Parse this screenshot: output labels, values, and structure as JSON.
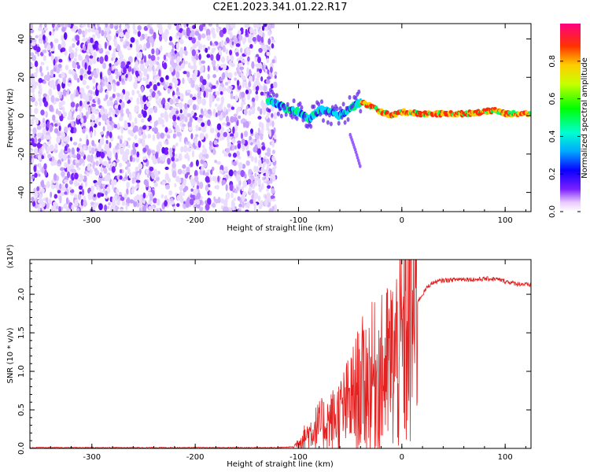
{
  "title": "C2E1.2023.341.01.22.R17",
  "colors": {
    "snr_line": "#e32020",
    "noise": "#7a1fff",
    "axis": "#000000"
  },
  "chart_data": [
    {
      "type": "heatmap",
      "xlabel": "Height of straight line (km)",
      "ylabel": "Frequency (Hz)",
      "xlim": [
        -360,
        125
      ],
      "ylim": [
        -50,
        48
      ],
      "xticks": [
        "-300",
        "-200",
        "-100",
        "0",
        "100"
      ],
      "yticks": [
        "40",
        "20",
        "0",
        "-20",
        "-40"
      ],
      "colorbar": {
        "label": "Normalized spectral amplitude",
        "range": [
          0.0,
          1.0
        ],
        "ticks": [
          "0.0",
          "0.2",
          "0.4",
          "0.6",
          "0.8"
        ]
      },
      "noise_region_x": [
        -360,
        -122
      ],
      "signal_trace": {
        "x": [
          -130,
          -120,
          -110,
          -100,
          -90,
          -80,
          -70,
          -60,
          -50,
          -40,
          -30,
          -20,
          -10,
          0,
          20,
          60,
          80,
          90,
          100,
          125
        ],
        "y": [
          8,
          6,
          3,
          2,
          -2,
          3,
          2,
          0,
          4,
          7,
          5,
          2,
          0,
          2,
          1,
          1,
          2,
          3,
          1,
          1
        ]
      },
      "branch_trace": {
        "x": [
          -50,
          -45,
          -40
        ],
        "y": [
          -10,
          -18,
          -27
        ]
      }
    },
    {
      "type": "line",
      "xlabel": "Height of straight line (km)",
      "ylabel": "SNR (10 * v/v)",
      "y_multiplier": "(x10⁴)",
      "xlim": [
        -360,
        125
      ],
      "ylim": [
        0,
        2.45
      ],
      "xticks": [
        "-300",
        "-200",
        "-100",
        "0",
        "100"
      ],
      "yticks": [
        "0.0",
        "0.5",
        "1.0",
        "1.5",
        "2.0"
      ],
      "series": [
        {
          "x": [
            -360,
            -300,
            -200,
            -120,
            -105,
            -100,
            -90,
            -80,
            -70,
            -60,
            -50,
            -40,
            -30,
            -20,
            -10,
            0,
            5,
            10,
            15,
            20,
            25,
            30,
            40,
            50,
            60,
            70,
            80,
            90,
            100,
            110,
            125
          ],
          "y": [
            0.01,
            0.01,
            0.01,
            0.01,
            0.02,
            0.08,
            0.2,
            0.3,
            0.35,
            0.45,
            0.6,
            0.8,
            0.9,
            0.95,
            1.1,
            1.3,
            1.5,
            1.7,
            1.9,
            2.0,
            2.1,
            2.15,
            2.18,
            2.19,
            2.2,
            2.19,
            2.2,
            2.2,
            2.17,
            2.14,
            2.12
          ]
        }
      ]
    }
  ]
}
